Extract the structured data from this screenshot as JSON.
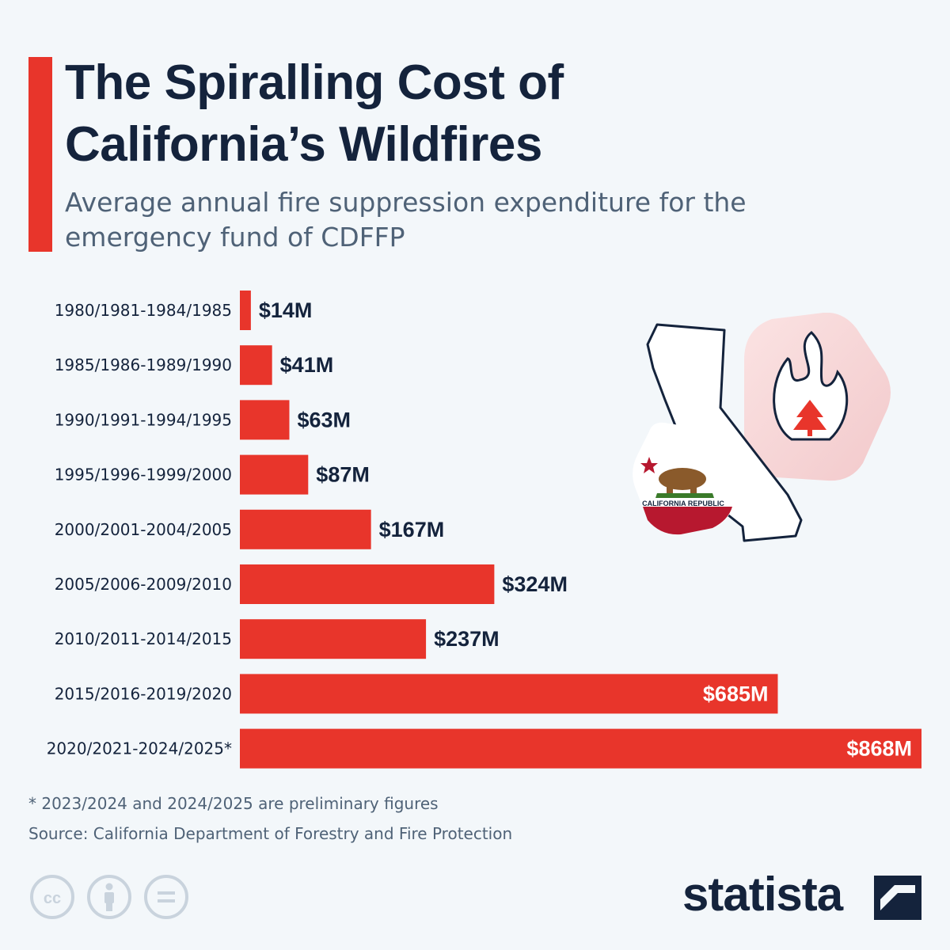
{
  "header": {
    "title": "The Spiralling Cost of California’s Wildfires",
    "subtitle": "Average annual fire suppression expenditure for the emergency fund of CDFFP"
  },
  "colors": {
    "bar": "#e8352b",
    "label_dark": "#14233c",
    "label_light": "#ffffff",
    "category": "#14233c"
  },
  "chart_data": {
    "type": "bar",
    "orientation": "horizontal",
    "categories": [
      "1980/1981-1984/1985",
      "1985/1986-1989/1990",
      "1990/1991-1994/1995",
      "1995/1996-1999/2000",
      "2000/2001-2004/2005",
      "2005/2006-2009/2010",
      "2010/2011-2014/2015",
      "2015/2016-2019/2020",
      "2020/2021-2024/2025*"
    ],
    "values": [
      14,
      41,
      63,
      87,
      167,
      324,
      237,
      685,
      868
    ],
    "value_labels": [
      "$14M",
      "$41M",
      "$63M",
      "$87M",
      "$167M",
      "$324M",
      "$237M",
      "$685M",
      "$868M"
    ],
    "unit": "million USD",
    "xlim": [
      0,
      868
    ],
    "grid": false,
    "legend": "none"
  },
  "illustration": {
    "flag_text": "CALIFORNIA REPUBLIC",
    "icons": [
      "california-map-icon",
      "california-flag-icon",
      "fire-tree-icon"
    ]
  },
  "footer": {
    "footnote": "* 2023/2024 and 2024/2025 are preliminary figures",
    "source": "Source: California Department of Forestry and Fire Protection",
    "license_icons": [
      "creative-commons-icon",
      "attribution-icon",
      "no-derivatives-icon"
    ],
    "brand": "statista"
  }
}
